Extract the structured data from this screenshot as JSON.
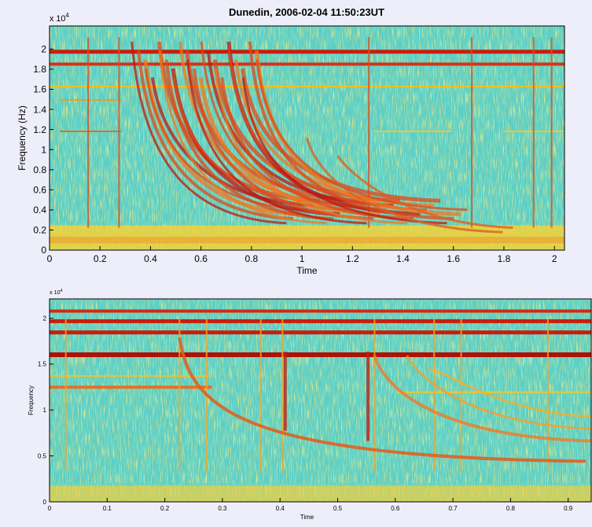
{
  "chart_data": [
    {
      "type": "spectrogram",
      "title": "Dunedin, 2006-02-04  11:50:23UT",
      "xlabel": "Time",
      "ylabel": "Frequency (Hz)",
      "exponent_base": "x 10",
      "exponent": "4",
      "xlim": [
        0,
        2.04
      ],
      "ylim": [
        0,
        2.23
      ],
      "xticks": [
        0,
        0.2,
        0.4,
        0.6,
        0.8,
        1,
        1.2,
        1.4,
        1.6,
        1.8,
        2
      ],
      "yticks": [
        0,
        0.2,
        0.4,
        0.6,
        0.8,
        1,
        1.2,
        1.4,
        1.6,
        1.8,
        2
      ]
    },
    {
      "type": "spectrogram",
      "xlabel": "Time",
      "ylabel": "Frequency",
      "exponent_base": "x 10",
      "exponent": "4",
      "xlim": [
        0,
        0.94
      ],
      "ylim": [
        0,
        2.21
      ],
      "xticks": [
        0,
        0.1,
        0.2,
        0.3,
        0.4,
        0.5,
        0.6,
        0.7,
        0.8,
        0.9
      ],
      "yticks": [
        0,
        0.5,
        1,
        1.5,
        2
      ]
    }
  ]
}
